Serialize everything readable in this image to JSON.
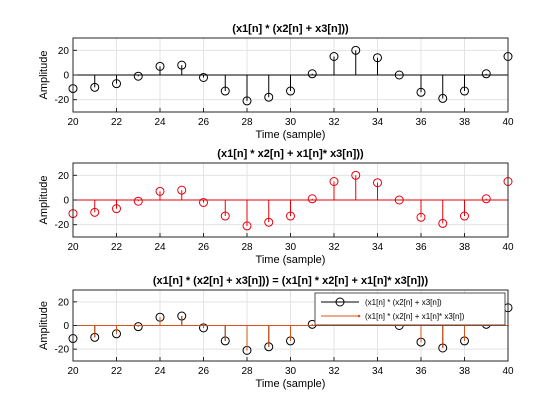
{
  "figure": {
    "background": "#ffffff"
  },
  "chart_data": [
    {
      "type": "stem",
      "title": "(x1[n]  * (x2[n] + x3[n]))",
      "xlabel": "Time (sample)",
      "ylabel": "Amplitude",
      "xlim": [
        20,
        40
      ],
      "ylim": [
        -30,
        30
      ],
      "xticks": [
        20,
        22,
        24,
        26,
        28,
        30,
        32,
        34,
        36,
        38,
        40
      ],
      "yticks": [
        -20,
        0,
        20
      ],
      "grid": true,
      "series": [
        {
          "color": "#000000",
          "marker": "circle",
          "x": [
            20,
            21,
            22,
            23,
            24,
            25,
            26,
            27,
            28,
            29,
            30,
            31,
            32,
            33,
            34,
            35,
            36,
            37,
            38,
            39,
            40
          ],
          "values": [
            -11,
            -10,
            -7,
            -1,
            7,
            8,
            -2,
            -13,
            -21,
            -18,
            -13,
            1,
            15,
            20,
            14,
            0,
            -14,
            -19,
            -13,
            1,
            15
          ]
        }
      ]
    },
    {
      "type": "stem",
      "title": "(x1[n]  * x2[n] + x1[n]* x3[n]))",
      "xlabel": "Time (sample)",
      "ylabel": "Amplitude",
      "xlim": [
        20,
        40
      ],
      "ylim": [
        -30,
        30
      ],
      "xticks": [
        20,
        22,
        24,
        26,
        28,
        30,
        32,
        34,
        36,
        38,
        40
      ],
      "yticks": [
        -20,
        0,
        20
      ],
      "grid": true,
      "series": [
        {
          "color": "#e8000b",
          "marker": "circle",
          "x": [
            20,
            21,
            22,
            23,
            24,
            25,
            26,
            27,
            28,
            29,
            30,
            31,
            32,
            33,
            34,
            35,
            36,
            37,
            38,
            39,
            40
          ],
          "values": [
            -11,
            -10,
            -7,
            -1,
            7,
            8,
            -2,
            -13,
            -21,
            -18,
            -13,
            1,
            15,
            20,
            14,
            0,
            -14,
            -19,
            -13,
            1,
            15
          ]
        }
      ]
    },
    {
      "type": "stem",
      "title": "(x1[n]  * (x2[n] + x3[n])) = (x1[n]  * x2[n] + x1[n]* x3[n]))",
      "xlabel": "Time (sample)",
      "ylabel": "Amplitude",
      "xlim": [
        20,
        40
      ],
      "ylim": [
        -30,
        30
      ],
      "xticks": [
        20,
        22,
        24,
        26,
        28,
        30,
        32,
        34,
        36,
        38,
        40
      ],
      "yticks": [
        -20,
        0,
        20
      ],
      "grid": true,
      "legend": "top-right",
      "series": [
        {
          "name": "(x1[n]  * (x2[n] + x3[n])",
          "color": "#000000",
          "marker": "circle",
          "x": [
            20,
            21,
            22,
            23,
            24,
            25,
            26,
            27,
            28,
            29,
            30,
            31,
            32,
            33,
            34,
            35,
            36,
            37,
            38,
            39,
            40
          ],
          "values": [
            -11,
            -10,
            -7,
            -1,
            7,
            8,
            -2,
            -13,
            -21,
            -18,
            -13,
            1,
            15,
            20,
            14,
            0,
            -14,
            -19,
            -13,
            1,
            15
          ]
        },
        {
          "name": "(x1[n]  * (x2[n] + x1[n]* x3[n])",
          "color": "#d95319",
          "marker": "none",
          "x": [
            20,
            21,
            22,
            23,
            24,
            25,
            26,
            27,
            28,
            29,
            30,
            31,
            32,
            33,
            34,
            35,
            36,
            37,
            38,
            39,
            40
          ],
          "values": [
            -11,
            -10,
            -7,
            -1,
            7,
            8,
            -2,
            -13,
            -21,
            -18,
            -13,
            1,
            15,
            20,
            14,
            0,
            -14,
            -19,
            -13,
            1,
            15
          ]
        }
      ]
    }
  ]
}
